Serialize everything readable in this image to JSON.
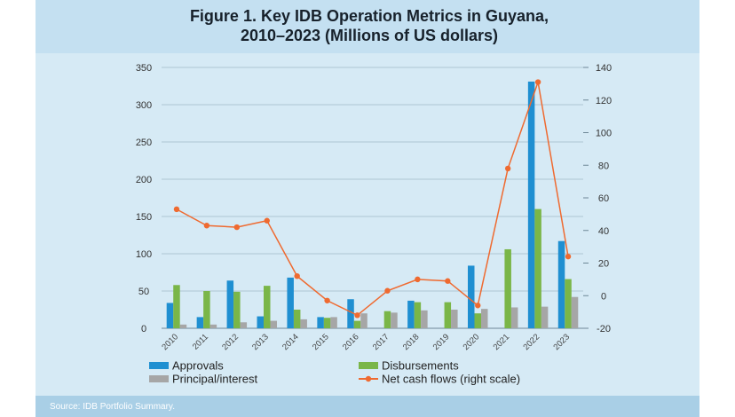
{
  "figure": {
    "title_line1": "Figure 1. Key IDB Operation Metrics in Guyana,",
    "title_line2": "2010–2023 (Millions of US dollars)",
    "source": "Source: IDB Portfolio Summary."
  },
  "chart_data": {
    "type": "bar",
    "categories": [
      "2010",
      "2011",
      "2012",
      "2013",
      "2014",
      "2015",
      "2016",
      "2017",
      "2018",
      "2019",
      "2020",
      "2021",
      "2022",
      "2023"
    ],
    "series": [
      {
        "name": "Approvals",
        "type": "bar",
        "axis": "left",
        "color": "#1f8fd1",
        "values": [
          34,
          15,
          64,
          16,
          68,
          15,
          39,
          0,
          37,
          0,
          84,
          0,
          331,
          117
        ]
      },
      {
        "name": "Disbursements",
        "type": "bar",
        "axis": "left",
        "color": "#7ab648",
        "values": [
          58,
          50,
          49,
          57,
          25,
          14,
          10,
          23,
          35,
          35,
          20,
          106,
          160,
          66
        ]
      },
      {
        "name": "Principal/interest",
        "type": "bar",
        "axis": "left",
        "color": "#a6a6a6",
        "values": [
          5,
          5,
          8,
          10,
          12,
          15,
          20,
          21,
          24,
          25,
          26,
          28,
          29,
          42
        ]
      },
      {
        "name": "Net cash flows (right scale)",
        "type": "line",
        "axis": "right",
        "color": "#ef6a30",
        "values": [
          53,
          43,
          42,
          46,
          12,
          -3,
          -12,
          3,
          10,
          9,
          -6,
          78,
          131,
          24
        ]
      }
    ],
    "ylim_left": [
      0,
      350
    ],
    "yticks_left": [
      0,
      50,
      100,
      150,
      200,
      250,
      300,
      350
    ],
    "ylim_right": [
      -20,
      140
    ],
    "yticks_right": [
      -20,
      0,
      20,
      40,
      60,
      80,
      100,
      120,
      140
    ],
    "grid": true,
    "legend_position": "bottom"
  }
}
